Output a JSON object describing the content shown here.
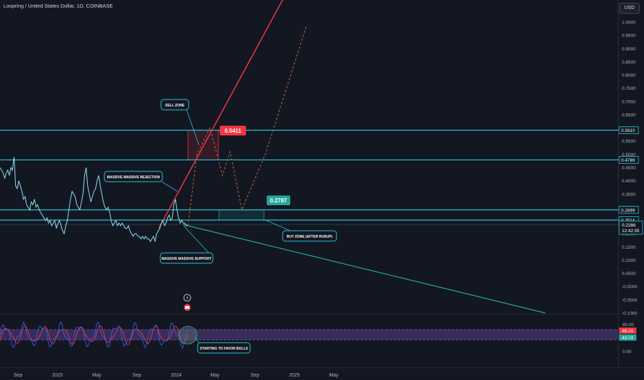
{
  "header": {
    "title": "Loopring / United States Dollar, 1D, COINBASE",
    "currency_button": "USD"
  },
  "colors": {
    "background": "#131722",
    "price_line": "#8fe3f5",
    "level_line": "#26c6da",
    "resistance_trend": "#f23645",
    "support_trend": "#26a69a",
    "sell_zone": "#f23645",
    "buy_zone": "#26a69a",
    "rsi_band": "#7e57c2",
    "rsi_fast": "#2962ff",
    "rsi_slow": "#f23645"
  },
  "chart_data": {
    "type": "line",
    "x_axis": {
      "ticks": [
        "Sep",
        "2023",
        "May",
        "Sep",
        "2024",
        "May",
        "Sep",
        "2025",
        "May"
      ]
    },
    "y_axis": {
      "ticks": [
        "1.0000",
        "0.9500",
        "0.9000",
        "0.8500",
        "0.8000",
        "0.7500",
        "0.7000",
        "0.6500",
        "0.6000",
        "0.5500",
        "0.5000",
        "0.4500",
        "0.4000",
        "0.3500",
        "0.3000",
        "0.2500",
        "0.2000",
        "0.1500",
        "0.1000",
        "0.0500",
        "-0.0000",
        "-0.0500",
        "-0.1000"
      ],
      "range": [
        -0.11,
        1.04
      ]
    },
    "price_series": {
      "name": "LRCUSD",
      "values": [
        0.45,
        0.44,
        0.43,
        0.41,
        0.43,
        0.44,
        0.42,
        0.45,
        0.44,
        0.49,
        0.38,
        0.37,
        0.4,
        0.38,
        0.36,
        0.33,
        0.34,
        0.31,
        0.3,
        0.29,
        0.32,
        0.31,
        0.33,
        0.3,
        0.31,
        0.29,
        0.28,
        0.27,
        0.26,
        0.25,
        0.26,
        0.24,
        0.25,
        0.23,
        0.24,
        0.25,
        0.22,
        0.24,
        0.25,
        0.23,
        0.21,
        0.2,
        0.23,
        0.25,
        0.29,
        0.33,
        0.36,
        0.35,
        0.34,
        0.31,
        0.3,
        0.29,
        0.32,
        0.35,
        0.42,
        0.45,
        0.38,
        0.35,
        0.32,
        0.34,
        0.36,
        0.37,
        0.4,
        0.42,
        0.38,
        0.35,
        0.32,
        0.3,
        0.29,
        0.3,
        0.28,
        0.25,
        0.23,
        0.24,
        0.25,
        0.23,
        0.24,
        0.23,
        0.24,
        0.23,
        0.22,
        0.22,
        0.23,
        0.21,
        0.2,
        0.19,
        0.2,
        0.2,
        0.19,
        0.19,
        0.18,
        0.19,
        0.18,
        0.19,
        0.18,
        0.18,
        0.17,
        0.18,
        0.19,
        0.17,
        0.2,
        0.21,
        0.22,
        0.24,
        0.25,
        0.23,
        0.24,
        0.26,
        0.27,
        0.25,
        0.26,
        0.31,
        0.33,
        0.29,
        0.26,
        0.24,
        0.25,
        0.24,
        0.24,
        0.23,
        0.23
      ]
    },
    "horizontal_levels": [
      {
        "value": 0.591,
        "label": "0.5910"
      },
      {
        "value": 0.4789,
        "label": "0.4789"
      },
      {
        "value": 0.2899,
        "label": "0.2899"
      },
      {
        "value": 0.2514,
        "label": "0.2514"
      }
    ],
    "current_price": {
      "label": "0.2286",
      "value": 0.2286,
      "countdown": "12:42:35"
    },
    "targets": [
      {
        "label": "0.5411",
        "value": 0.5411
      },
      {
        "label": "0.2787",
        "value": 0.2787
      }
    ],
    "zones": [
      {
        "name": "sell-zone",
        "y_top": 0.591,
        "y_bottom": 0.4789
      },
      {
        "name": "buy-zone",
        "y_top": 0.2899,
        "y_bottom": 0.2514
      }
    ],
    "annotations": [
      "SELL ZONE",
      "MASSIVE MASSIVE REJECTION",
      "MASSIVE MASSIVE SUPPORT",
      "BUY ZONE (AFTER RUNUP)",
      "STARTING TO FAVOR BULLS"
    ],
    "projection_path": [
      0.23,
      0.5,
      0.6,
      0.42,
      0.51,
      0.29,
      0.5,
      0.99
    ],
    "rsi": {
      "ticks": [
        "80.00",
        "0.00"
      ],
      "upper": 80,
      "lower": 20,
      "fast": {
        "label": "46.29",
        "value": 46.29
      },
      "slow": {
        "label": "43.74",
        "value": 43.74
      }
    }
  }
}
